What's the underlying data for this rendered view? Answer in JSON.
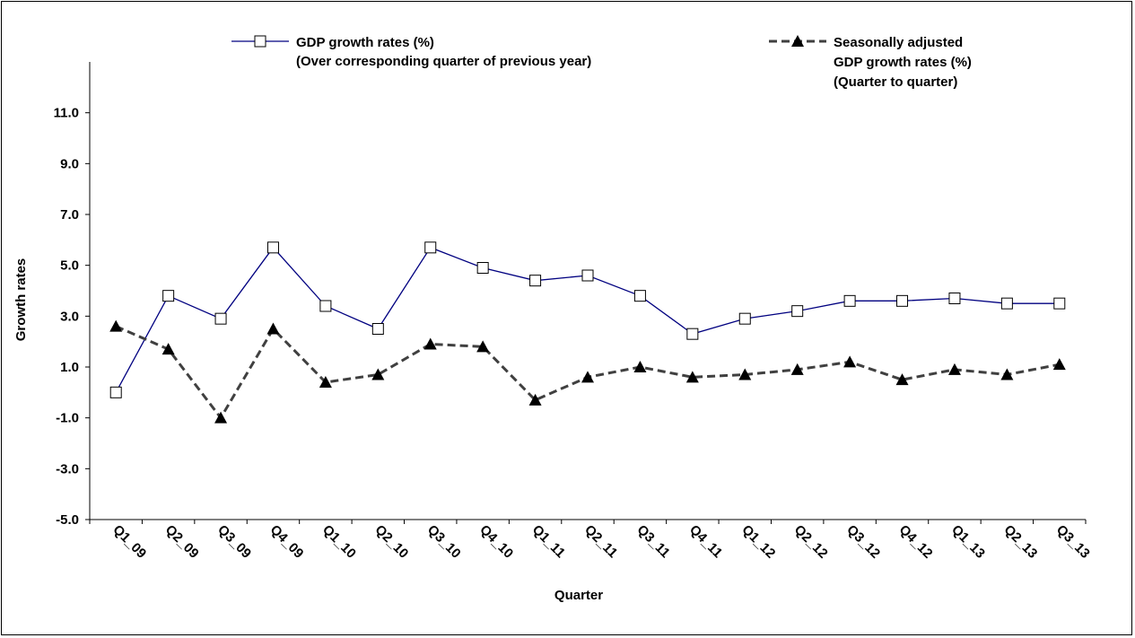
{
  "chart_data": {
    "type": "line",
    "xlabel": "Quarter",
    "ylabel": "Growth rates",
    "ylim": [
      -5.0,
      13.0
    ],
    "yticks": [
      -5.0,
      -3.0,
      -1.0,
      1.0,
      3.0,
      5.0,
      7.0,
      9.0,
      11.0
    ],
    "grid": false,
    "legend_position": "top",
    "categories": [
      "Q1_09",
      "Q2_09",
      "Q3_09",
      "Q4_09",
      "Q1_10",
      "Q2_10",
      "Q3_10",
      "Q4_10",
      "Q1_11",
      "Q2_11",
      "Q3_11",
      "Q4_11",
      "Q1_12",
      "Q2_12",
      "Q3_12",
      "Q4_12",
      "Q1_13",
      "Q2_13",
      "Q3_13"
    ],
    "series": [
      {
        "name": "GDP growth rates (%)",
        "name_line2": "(Over corresponding quarter of previous year)",
        "color": "#000080",
        "marker": "open-square",
        "line_style": "solid",
        "values": [
          0.0,
          3.8,
          2.9,
          5.7,
          3.4,
          2.5,
          5.7,
          4.9,
          4.4,
          4.6,
          3.8,
          2.3,
          2.9,
          3.2,
          3.6,
          3.6,
          3.7,
          3.5,
          3.5
        ]
      },
      {
        "name": "Seasonally adjusted",
        "name_line2": "GDP growth rates (%)",
        "name_line3": "(Quarter to quarter)",
        "color": "#404040",
        "marker": "filled-triangle",
        "line_style": "dashed",
        "values": [
          2.6,
          1.7,
          -1.0,
          2.5,
          0.4,
          0.7,
          1.9,
          1.8,
          -0.3,
          0.6,
          1.0,
          0.6,
          0.7,
          0.9,
          1.2,
          0.5,
          0.9,
          0.7,
          1.1
        ]
      }
    ]
  }
}
